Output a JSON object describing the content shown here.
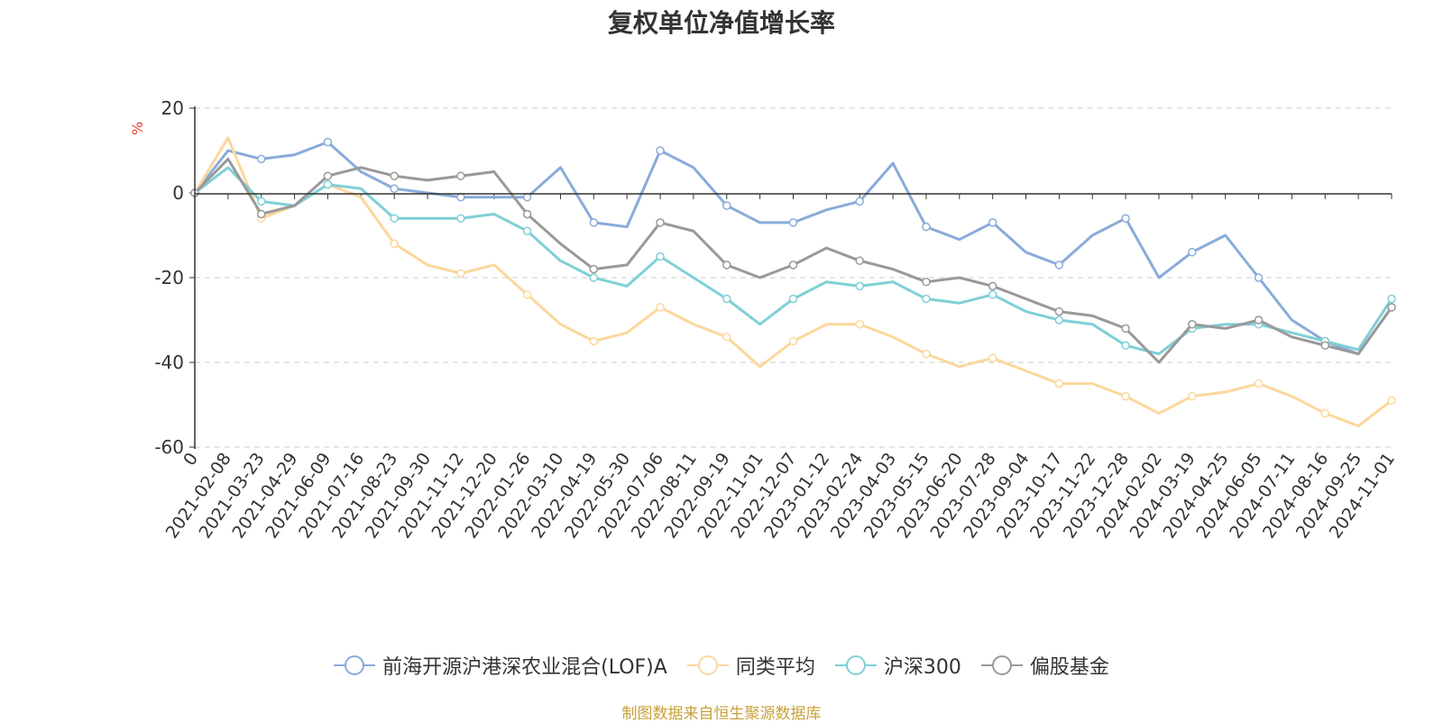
{
  "chart_data": {
    "type": "line",
    "title": "复权单位净值增长率",
    "ylabel": "%",
    "ylim": [
      -60,
      20
    ],
    "yticks": [
      20,
      0,
      -20,
      -40,
      -60
    ],
    "categories": [
      "0",
      "2021-02-08",
      "2021-03-23",
      "2021-04-29",
      "2021-06-09",
      "2021-07-16",
      "2021-08-23",
      "2021-09-30",
      "2021-11-12",
      "2021-12-20",
      "2022-01-26",
      "2022-03-10",
      "2022-04-19",
      "2022-05-30",
      "2022-07-06",
      "2022-08-11",
      "2022-09-19",
      "2022-11-01",
      "2022-12-07",
      "2023-01-12",
      "2023-02-24",
      "2023-04-03",
      "2023-05-15",
      "2023-06-20",
      "2023-07-28",
      "2023-09-04",
      "2023-10-17",
      "2023-11-22",
      "2023-12-28",
      "2024-02-02",
      "2024-03-19",
      "2024-04-25",
      "2024-06-05",
      "2024-07-11",
      "2024-08-16",
      "2024-09-25",
      "2024-11-01"
    ],
    "series": [
      {
        "name": "前海开源沪港深农业混合(LOF)A",
        "color": "#8aabda",
        "values": [
          0,
          10,
          8,
          9,
          12,
          5,
          1,
          0,
          -1,
          -1,
          -1,
          6,
          -7,
          -8,
          10,
          6,
          -3,
          -7,
          -7,
          -4,
          -2,
          7,
          -8,
          -11,
          -7,
          -14,
          -17,
          -10,
          -6,
          -20,
          -14,
          -10,
          -20,
          -30,
          -35,
          -38,
          -27
        ]
      },
      {
        "name": "同类平均",
        "color": "#fcd79c",
        "values": [
          0,
          13,
          -6,
          -3,
          2,
          -1,
          -12,
          -17,
          -19,
          -17,
          -24,
          -31,
          -35,
          -33,
          -27,
          -31,
          -34,
          -41,
          -35,
          -31,
          -31,
          -34,
          -38,
          -41,
          -39,
          -42,
          -45,
          -45,
          -48,
          -52,
          -48,
          -47,
          -45,
          -48,
          -52,
          -55,
          -49
        ]
      },
      {
        "name": "沪深300",
        "color": "#7fd0d6",
        "values": [
          0,
          6,
          -2,
          -3,
          2,
          1,
          -6,
          -6,
          -6,
          -5,
          -9,
          -16,
          -20,
          -22,
          -15,
          -20,
          -25,
          -31,
          -25,
          -21,
          -22,
          -21,
          -25,
          -26,
          -24,
          -28,
          -30,
          -31,
          -36,
          -38,
          -32,
          -31,
          -31,
          -33,
          -35,
          -37,
          -25
        ]
      },
      {
        "name": "偏股基金",
        "color": "#999999",
        "values": [
          0,
          8,
          -5,
          -3,
          4,
          6,
          4,
          3,
          4,
          5,
          -5,
          -12,
          -18,
          -17,
          -7,
          -9,
          -17,
          -20,
          -17,
          -13,
          -16,
          -18,
          -21,
          -20,
          -22,
          -25,
          -28,
          -29,
          -32,
          -40,
          -31,
          -32,
          -30,
          -34,
          -36,
          -38,
          -27
        ]
      }
    ]
  },
  "source": "制图数据来自恒生聚源数据库"
}
